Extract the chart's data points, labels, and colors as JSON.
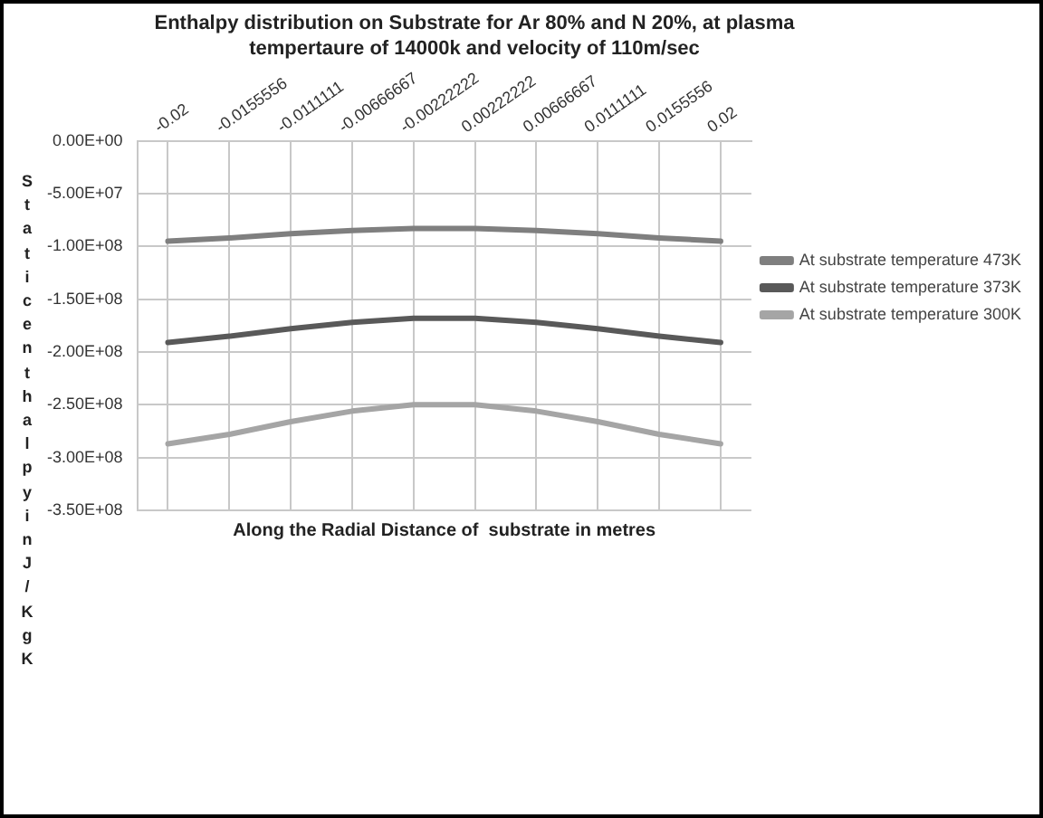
{
  "chart_data": {
    "type": "line",
    "title": "Enthalpy distribution  on Substrate for Ar 80% and N 20%, at plasma tempertaure of 14000k and velocity of 110m/sec",
    "xlabel": "Along the Radial Distance of  substrate in metres",
    "ylabel": "Static enthalpy in J/KgK",
    "categories": [
      "-0.02",
      "-0.0155556",
      "-0.0111111",
      "-0.00666667",
      "-0.00222222",
      "0.00222222",
      "0.00666667",
      "0.0111111",
      "0.0155556",
      "0.02"
    ],
    "series": [
      {
        "name": "At substrate temperature 473K",
        "color": "#7f7f7f",
        "values": [
          -95000000,
          -92000000,
          -88000000,
          -85000000,
          -83000000,
          -83000000,
          -85000000,
          -88000000,
          -92000000,
          -95000000
        ]
      },
      {
        "name": "At substrate temperature 373K",
        "color": "#595959",
        "values": [
          -191000000,
          -185000000,
          -178000000,
          -172000000,
          -168000000,
          -168000000,
          -172000000,
          -178000000,
          -185000000,
          -191000000
        ]
      },
      {
        "name": "At substrate temperature 300K",
        "color": "#a5a5a5",
        "values": [
          -287000000,
          -278000000,
          -266000000,
          -256000000,
          -250000000,
          -250000000,
          -256000000,
          -266000000,
          -278000000,
          -287000000
        ]
      }
    ],
    "ylim": [
      -350000000,
      0
    ],
    "yticks": [
      {
        "value": 0,
        "label": "0.00E+00"
      },
      {
        "value": -50000000,
        "label": "-5.00E+07"
      },
      {
        "value": -100000000,
        "label": "-1.00E+08"
      },
      {
        "value": -150000000,
        "label": "-1.50E+08"
      },
      {
        "value": -200000000,
        "label": "-2.00E+08"
      },
      {
        "value": -250000000,
        "label": "-2.50E+08"
      },
      {
        "value": -300000000,
        "label": "-3.00E+08"
      },
      {
        "value": -350000000,
        "label": "-3.50E+08"
      }
    ],
    "grid": true,
    "legend": "right",
    "marker": "none",
    "line_style": "solid"
  }
}
